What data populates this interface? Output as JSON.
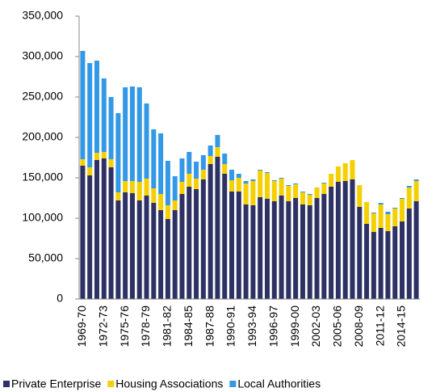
{
  "chart_data": {
    "type": "stacked_bar",
    "categories": [
      "1969-70",
      null,
      null,
      "1972-73",
      null,
      null,
      "1975-76",
      null,
      null,
      "1978-79",
      null,
      null,
      "1981-82",
      null,
      null,
      "1984-85",
      null,
      null,
      "1987-88",
      null,
      null,
      "1990-91",
      null,
      null,
      "1993-94",
      null,
      null,
      "1996-97",
      null,
      null,
      "1999-00",
      null,
      null,
      "2002-03",
      null,
      null,
      "2005-06",
      null,
      null,
      "2008-09",
      null,
      null,
      "2011-12",
      null,
      null,
      "2014-15",
      null,
      null
    ],
    "series": [
      {
        "name": "Private Enterprise",
        "color": "#2e3163",
        "values": [
          165000,
          153000,
          172000,
          174000,
          163000,
          122000,
          132000,
          131000,
          122000,
          128000,
          119000,
          110000,
          99000,
          110000,
          130000,
          139000,
          136000,
          148000,
          167000,
          176000,
          155000,
          133000,
          133000,
          117000,
          116000,
          126000,
          124000,
          121000,
          128000,
          121000,
          125000,
          117000,
          116000,
          125000,
          130000,
          139000,
          145000,
          146000,
          148000,
          114000,
          93000,
          83000,
          88000,
          84000,
          90000,
          96000,
          112000,
          121000
        ]
      },
      {
        "name": "Housing Associations",
        "color": "#f5d000",
        "values": [
          8000,
          10000,
          9000,
          8000,
          10000,
          10000,
          14000,
          15000,
          23000,
          21000,
          18000,
          20000,
          17000,
          12000,
          15000,
          16000,
          13000,
          12000,
          10000,
          12000,
          12000,
          14000,
          17000,
          26000,
          30000,
          33000,
          32000,
          25000,
          21000,
          19000,
          17000,
          15000,
          13000,
          13000,
          13000,
          16000,
          19000,
          22000,
          24000,
          27000,
          27000,
          23000,
          29000,
          21000,
          22000,
          28000,
          26000,
          25000
        ]
      },
      {
        "name": "Local Authorities",
        "color": "#3399e6",
        "values": [
          134000,
          129000,
          114000,
          91000,
          77000,
          98000,
          116000,
          117000,
          117000,
          93000,
          73000,
          75000,
          55000,
          30000,
          29000,
          27000,
          21000,
          18000,
          13000,
          15000,
          13000,
          13000,
          5000,
          3000,
          2000,
          1000,
          1000,
          1000,
          1000,
          1000,
          1000,
          1000,
          1000,
          0,
          1000,
          0,
          0,
          0,
          0,
          0,
          0,
          1000,
          2000,
          3000,
          1000,
          1000,
          2000,
          2000
        ]
      }
    ],
    "ylim": [
      0,
      350000
    ],
    "yticks": [
      0,
      {
        "value": 50000,
        "label": "50,000"
      },
      {
        "value": 100000,
        "label": "100,000"
      },
      {
        "value": 150000,
        "label": "150,000"
      },
      {
        "value": 200000,
        "label": "200,000"
      },
      {
        "value": 250000,
        "label": "250,000"
      },
      {
        "value": 300000,
        "label": "300,000"
      },
      {
        "value": 350000,
        "label": "350,000"
      }
    ],
    "legend": "bottom"
  }
}
